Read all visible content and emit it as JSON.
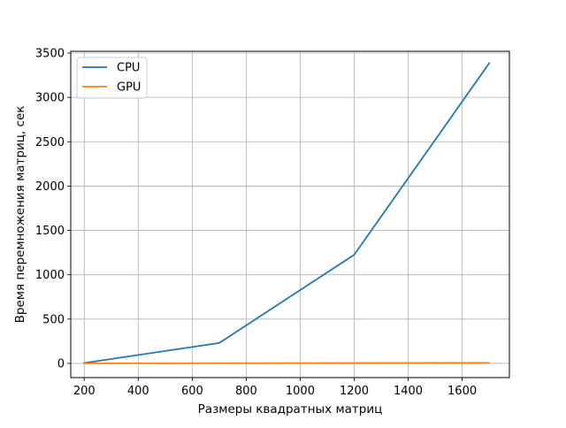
{
  "chart_data": {
    "type": "line",
    "title": "",
    "xlabel": "Размеры квадратных матриц",
    "ylabel": "Время перемножения матриц, сек",
    "xlim": [
      150,
      1775
    ],
    "ylim": [
      -160,
      3520
    ],
    "xticks": [
      200,
      400,
      600,
      800,
      1000,
      1200,
      1400,
      1600
    ],
    "yticks": [
      0,
      500,
      1000,
      1500,
      2000,
      2500,
      3000,
      3500
    ],
    "grid": true,
    "legend_position": "top-left",
    "series": [
      {
        "name": "CPU",
        "color": "#1f77b4",
        "x": [
          200,
          700,
          1200,
          1700
        ],
        "y": [
          5,
          230,
          1225,
          3385
        ]
      },
      {
        "name": "GPU",
        "color": "#ff7f0e",
        "x": [
          200,
          700,
          1200,
          1700
        ],
        "y": [
          1,
          2,
          4,
          6
        ]
      }
    ]
  }
}
